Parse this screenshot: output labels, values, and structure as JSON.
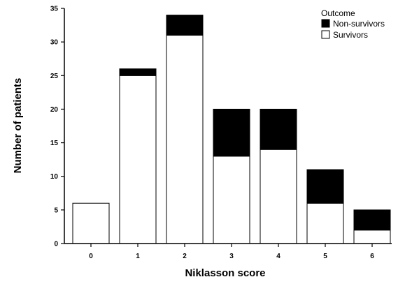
{
  "chart_data": {
    "type": "bar",
    "stacked": true,
    "title": "",
    "xlabel": "Niklasson score",
    "ylabel": "Number of patients",
    "categories": [
      "0",
      "1",
      "2",
      "3",
      "4",
      "5",
      "6"
    ],
    "series": [
      {
        "name": "Survivors",
        "values": [
          6,
          25,
          31,
          13,
          14,
          6,
          2
        ],
        "color": "#ffffff"
      },
      {
        "name": "Non-survivors",
        "values": [
          0,
          1,
          3,
          7,
          6,
          5,
          3
        ],
        "color": "#000000"
      }
    ],
    "ylim": [
      0,
      35
    ],
    "yticks": [
      0,
      5,
      10,
      15,
      20,
      25,
      30,
      35
    ],
    "legend": {
      "title": "Outcome",
      "entries": [
        "Non-survivors",
        "Survivors"
      ],
      "position": "top-right"
    },
    "grid": false
  }
}
